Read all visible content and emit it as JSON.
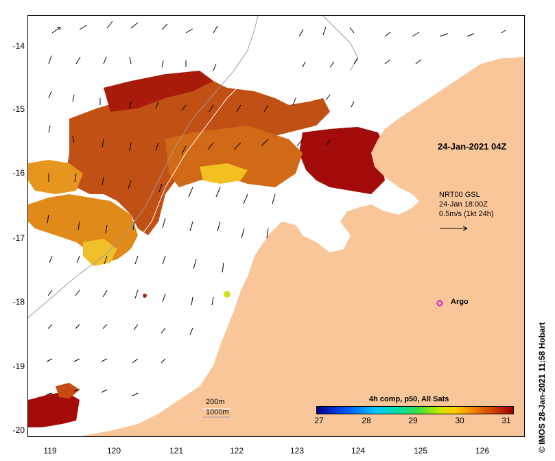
{
  "map": {
    "y_axis_labels": [
      "-14",
      "-15",
      "-16",
      "-17",
      "-18",
      "-19",
      "-20"
    ],
    "x_axis_labels": [
      "119",
      "120",
      "121",
      "122",
      "123",
      "124",
      "125",
      "126"
    ],
    "date_label": "24-Jan-2021 04Z",
    "current_model": {
      "line1": "NRT00 GSL",
      "line2": "24-Jan 18:00Z",
      "line3": "0.5m/s (1kt 24h)"
    },
    "argo_label": "Argo",
    "isobaths": {
      "label_200": "200m",
      "label_1000": "1000m"
    },
    "colorbar": {
      "title": "4h comp, p50, All Sats",
      "ticks": [
        "27",
        "28",
        "29",
        "30",
        "31"
      ]
    },
    "credit": "© IMOS 28-Jan-2021 11:58 Hobart",
    "colors": {
      "land": "#f9c69a",
      "sst_hot": "#a30a0a",
      "sst_warm": "#c84a10",
      "sst_mild": "#e08a1a",
      "sst_cool": "#f2c020",
      "argo": "#d020d0"
    }
  }
}
